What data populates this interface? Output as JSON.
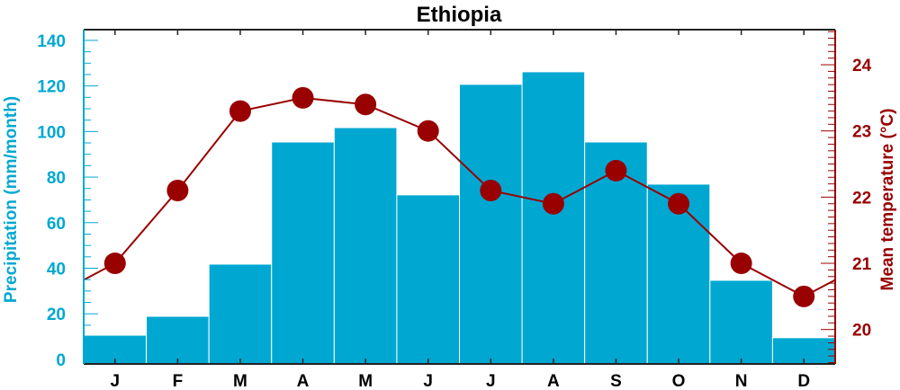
{
  "chart_data": {
    "type": "bar+line",
    "title": "Ethiopia",
    "categories": [
      "J",
      "F",
      "M",
      "A",
      "M",
      "J",
      "J",
      "A",
      "S",
      "O",
      "N",
      "D"
    ],
    "series": [
      {
        "name": "Precipitation",
        "type": "bar",
        "axis": "left",
        "values": [
          10.6,
          18.9,
          41.8,
          95.4,
          101.7,
          72.2,
          120.7,
          126.2,
          95.4,
          76.9,
          34.7,
          9.5
        ]
      },
      {
        "name": "Mean temperature",
        "type": "line",
        "axis": "right",
        "values": [
          21.0,
          22.1,
          23.3,
          23.5,
          23.4,
          23.0,
          22.1,
          21.9,
          22.4,
          21.9,
          21.0,
          20.5
        ]
      }
    ],
    "ylabel": "Precipitation (mm/month)",
    "y2label": "Mean temperature (°C)",
    "ylim": [
      -2,
      144.7
    ],
    "y2lim": [
      19.48,
      24.53
    ],
    "yticks": [
      0,
      20,
      40,
      60,
      80,
      100,
      120,
      140
    ],
    "y2ticks": [
      20,
      21,
      22,
      23,
      24
    ],
    "grid": false,
    "colors": {
      "bar": "#00a8d1",
      "line": "#990000",
      "left_axis": "#00a8d1",
      "right_axis": "#990000"
    }
  }
}
